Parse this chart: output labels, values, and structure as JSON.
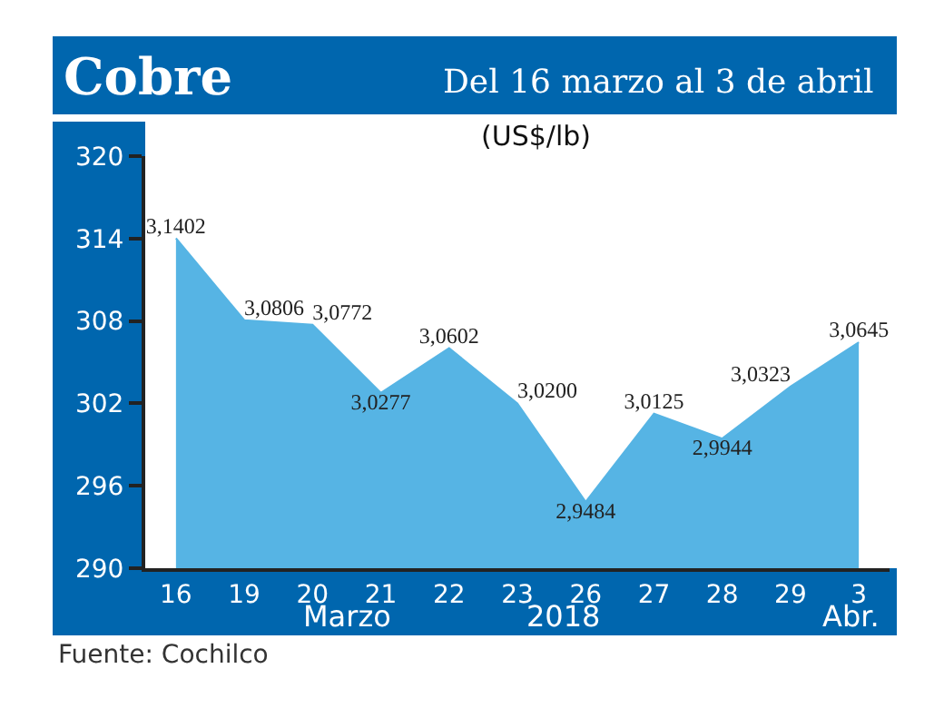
{
  "chart_data": {
    "type": "area",
    "title": "Cobre",
    "subtitle": "Del 16 marzo al 3 de abril",
    "ylabel": "(US$/lb)",
    "annotations": [
      "Marzo",
      "2018",
      "Abr.",
      "Fuente: Cochilco"
    ],
    "categories": [
      "16",
      "19",
      "20",
      "21",
      "22",
      "23",
      "26",
      "27",
      "28",
      "29",
      "3"
    ],
    "values": [
      314.02,
      308.06,
      307.72,
      302.77,
      306.02,
      302.0,
      294.84,
      301.25,
      299.44,
      303.23,
      306.45
    ],
    "value_labels": [
      "3,1402",
      "3,0806",
      "3,0772",
      "3,0277",
      "3,0602",
      "3,0200",
      "2,9484",
      "3,0125",
      "2,9944",
      "3,0323",
      "3,0645"
    ],
    "color": "#56b4e4",
    "ylim": [
      290,
      320
    ],
    "yticks": [
      290,
      296,
      302,
      308,
      314,
      320
    ]
  }
}
